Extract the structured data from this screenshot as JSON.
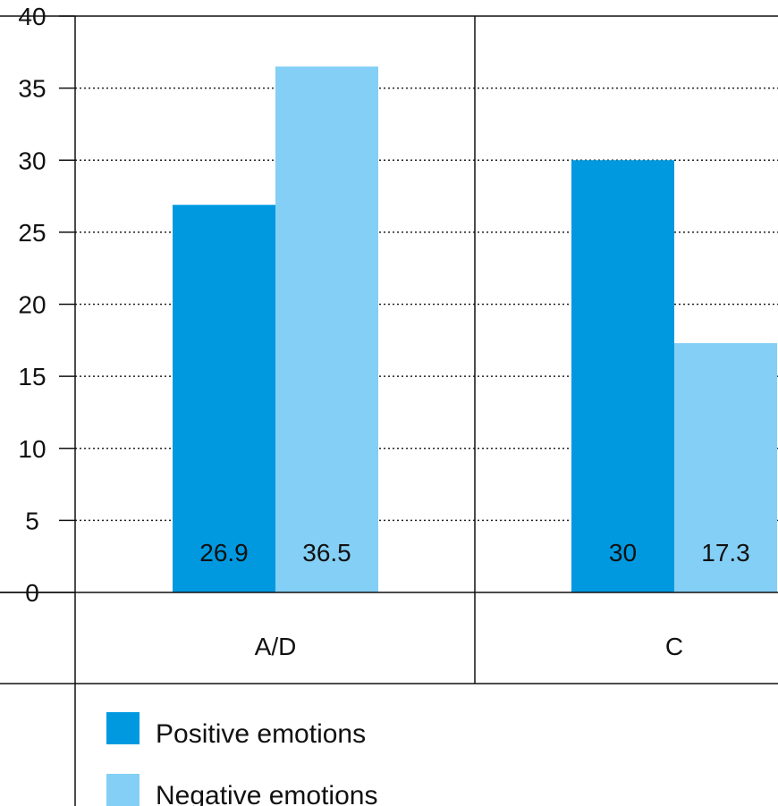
{
  "chart_data": {
    "type": "bar",
    "categories": [
      "A/D",
      "C"
    ],
    "series": [
      {
        "name": "Positive emotions",
        "values": [
          26.9,
          30
        ],
        "labels": [
          "26.9",
          "30"
        ],
        "color": "#0099e0"
      },
      {
        "name": "Negative emotions",
        "values": [
          36.5,
          17.3
        ],
        "labels": [
          "36.5",
          "17.3"
        ],
        "color": "#84cff5"
      }
    ],
    "yticks": [
      "0",
      "5",
      "10",
      "15",
      "20",
      "25",
      "30",
      "35",
      "40"
    ],
    "ylim": [
      0,
      40
    ],
    "grid": "dotted horizontal",
    "legend_position": "bottom-left",
    "title": "",
    "xlabel": "",
    "ylabel": ""
  }
}
